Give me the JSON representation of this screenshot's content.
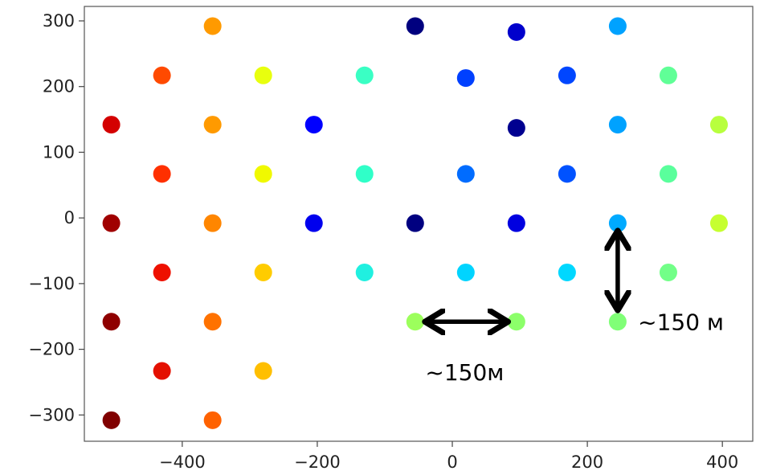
{
  "chart_data": {
    "type": "scatter",
    "xlim": [
      -545,
      445
    ],
    "ylim": [
      -340,
      322
    ],
    "x_ticks": [
      -400,
      -200,
      0,
      200,
      400
    ],
    "y_ticks": [
      -300,
      -200,
      -100,
      0,
      100,
      200,
      300
    ],
    "grid": false,
    "points": [
      {
        "x": -355,
        "y": 292,
        "color": "#ff9a00"
      },
      {
        "x": -55,
        "y": 292,
        "color": "#00007f"
      },
      {
        "x": 95,
        "y": 283,
        "color": "#0000cc"
      },
      {
        "x": 245,
        "y": 292,
        "color": "#00a2ff"
      },
      {
        "x": -430,
        "y": 217,
        "color": "#ff4a00"
      },
      {
        "x": -280,
        "y": 217,
        "color": "#e8ff0e"
      },
      {
        "x": -130,
        "y": 217,
        "color": "#3affc4"
      },
      {
        "x": 20,
        "y": 213,
        "color": "#0040ff"
      },
      {
        "x": 170,
        "y": 217,
        "color": "#0046ff"
      },
      {
        "x": 320,
        "y": 217,
        "color": "#60ff97"
      },
      {
        "x": -505,
        "y": 142,
        "color": "#d40000"
      },
      {
        "x": -355,
        "y": 142,
        "color": "#ff9a00"
      },
      {
        "x": -205,
        "y": 142,
        "color": "#0000ff"
      },
      {
        "x": 95,
        "y": 137,
        "color": "#000090"
      },
      {
        "x": 245,
        "y": 142,
        "color": "#00a2ff"
      },
      {
        "x": 395,
        "y": 142,
        "color": "#b8ff3e"
      },
      {
        "x": -430,
        "y": 67,
        "color": "#ff3000"
      },
      {
        "x": -280,
        "y": 67,
        "color": "#f0f900"
      },
      {
        "x": -130,
        "y": 67,
        "color": "#30ffc8"
      },
      {
        "x": 20,
        "y": 67,
        "color": "#006cff"
      },
      {
        "x": 170,
        "y": 67,
        "color": "#0052ff"
      },
      {
        "x": 320,
        "y": 67,
        "color": "#5aff9c"
      },
      {
        "x": -505,
        "y": -8,
        "color": "#a00000"
      },
      {
        "x": -355,
        "y": -8,
        "color": "#ff8600"
      },
      {
        "x": -205,
        "y": -8,
        "color": "#0000ee"
      },
      {
        "x": -55,
        "y": -8,
        "color": "#000080"
      },
      {
        "x": 95,
        "y": -8,
        "color": "#0000e0"
      },
      {
        "x": 245,
        "y": -8,
        "color": "#00aaff"
      },
      {
        "x": 395,
        "y": -8,
        "color": "#c6ff30"
      },
      {
        "x": -430,
        "y": -83,
        "color": "#ee1000"
      },
      {
        "x": -280,
        "y": -83,
        "color": "#ffcc00"
      },
      {
        "x": -130,
        "y": -83,
        "color": "#20f0e0"
      },
      {
        "x": 20,
        "y": -83,
        "color": "#00d4ff"
      },
      {
        "x": 170,
        "y": -83,
        "color": "#00d8ff"
      },
      {
        "x": 320,
        "y": -83,
        "color": "#72ff88"
      },
      {
        "x": -505,
        "y": -158,
        "color": "#8f0000"
      },
      {
        "x": -355,
        "y": -158,
        "color": "#ff7200"
      },
      {
        "x": -55,
        "y": -158,
        "color": "#9cff5c"
      },
      {
        "x": 95,
        "y": -158,
        "color": "#8cff6a"
      },
      {
        "x": 245,
        "y": -158,
        "color": "#80ff77"
      },
      {
        "x": -430,
        "y": -233,
        "color": "#e41000"
      },
      {
        "x": -280,
        "y": -233,
        "color": "#ffbf00"
      },
      {
        "x": -505,
        "y": -308,
        "color": "#800000"
      },
      {
        "x": -355,
        "y": -308,
        "color": "#ff6200"
      }
    ],
    "annotations": [
      {
        "text": "~150м",
        "arrow": "horizontal",
        "from": [
          -38,
          -158
        ],
        "to": [
          80,
          -158
        ],
        "text_at": [
          -40,
          -235
        ]
      },
      {
        "text": "~150 м",
        "arrow": "vertical",
        "from": [
          245,
          -22
        ],
        "to": [
          245,
          -138
        ],
        "text_at": [
          275,
          -158
        ]
      }
    ]
  }
}
